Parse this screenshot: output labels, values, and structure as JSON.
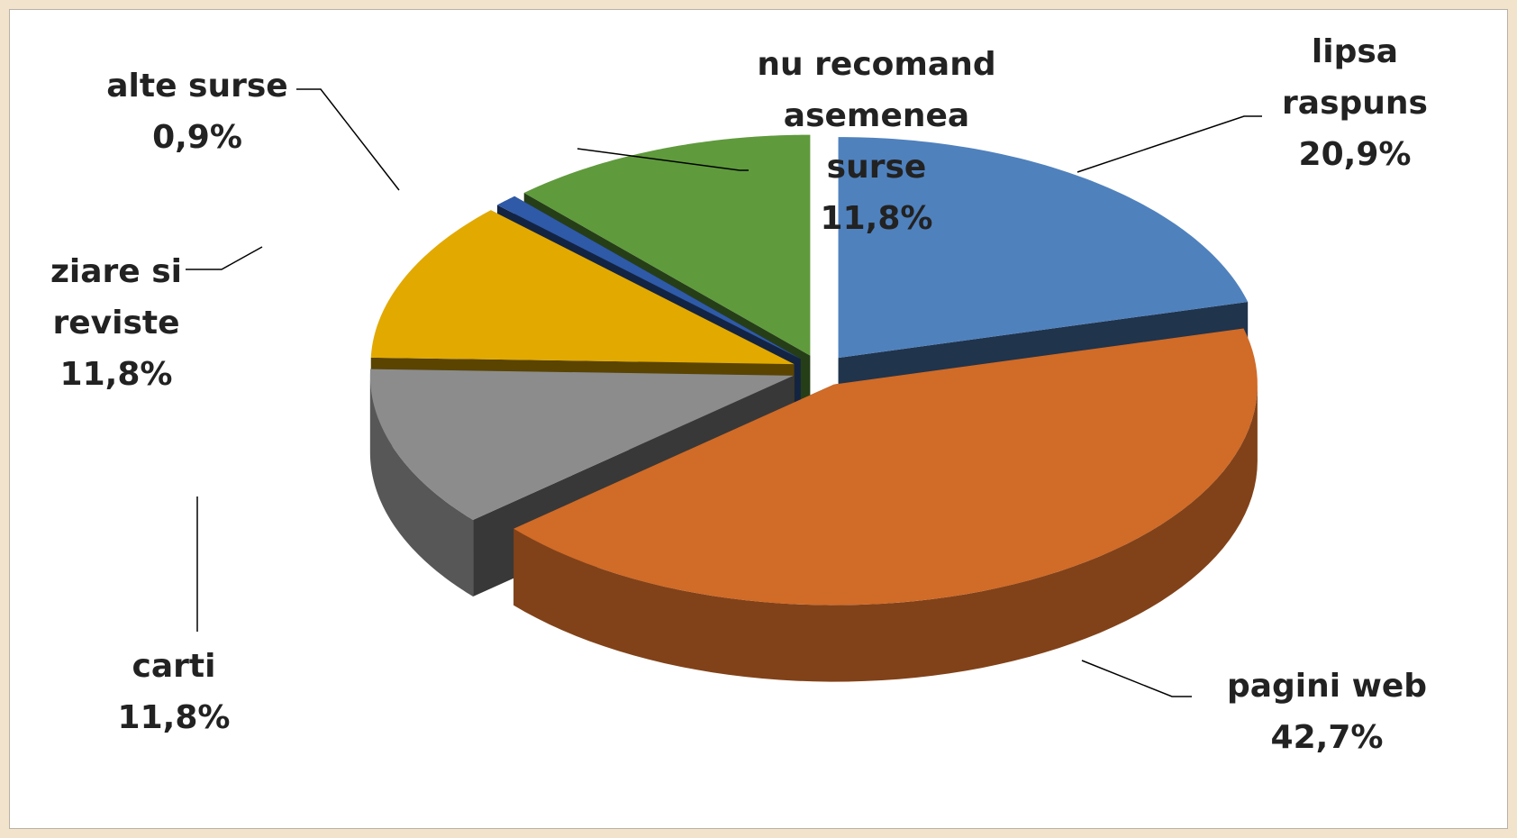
{
  "chart_data": {
    "type": "pie",
    "three_d": true,
    "categories": [
      "lipsa raspuns",
      "pagini web",
      "carti",
      "ziare si reviste",
      "alte surse",
      "nu recomand asemenea surse"
    ],
    "values": [
      20.9,
      42.7,
      11.8,
      11.8,
      0.9,
      11.8
    ],
    "value_labels": [
      "20,9%",
      "42,7%",
      "11,8%",
      "11,8%",
      "0,9%",
      "11,8%"
    ],
    "colors": [
      "#4f81bd",
      "#d06b28",
      "#8c8c8c",
      "#e2a900",
      "#2f5aa8",
      "#5f9a3c"
    ]
  }
}
